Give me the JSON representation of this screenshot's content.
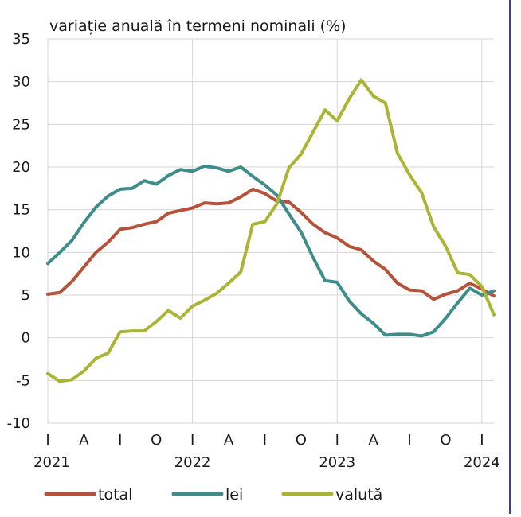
{
  "chart_data": {
    "type": "line",
    "title": "variație anuală în termeni nominali (%)",
    "ylim": [
      -10,
      35
    ],
    "yticks": [
      35,
      30,
      25,
      20,
      15,
      10,
      5,
      0,
      -5,
      -10
    ],
    "xtick_labels": [
      "I",
      "A",
      "I",
      "O",
      "I",
      "A",
      "I",
      "O",
      "I",
      "A",
      "I",
      "O",
      "I"
    ],
    "year_labels": [
      "2021",
      "2022",
      "2023",
      "2024"
    ],
    "grid": true,
    "legend_position": "bottom",
    "series": [
      {
        "name": "total",
        "color": "#b5533a",
        "values": [
          5.1,
          5.3,
          6.6,
          8.3,
          10.0,
          11.2,
          12.7,
          12.9,
          13.3,
          13.6,
          14.6,
          14.9,
          15.2,
          15.8,
          15.7,
          15.8,
          16.5,
          17.4,
          16.9,
          16.0,
          15.9,
          14.7,
          13.3,
          12.3,
          11.7,
          10.7,
          10.3,
          9.0,
          8.0,
          6.4,
          5.6,
          5.5,
          4.5,
          5.1,
          5.5,
          6.4,
          5.7,
          4.9
        ]
      },
      {
        "name": "lei",
        "color": "#3e8d8a",
        "values": [
          8.7,
          10.0,
          11.4,
          13.5,
          15.3,
          16.6,
          17.4,
          17.5,
          18.4,
          18.0,
          19.0,
          19.7,
          19.5,
          20.1,
          19.9,
          19.5,
          20.0,
          18.9,
          17.9,
          16.7,
          14.5,
          12.4,
          9.4,
          6.7,
          6.5,
          4.3,
          2.8,
          1.7,
          0.3,
          0.4,
          0.4,
          0.2,
          0.7,
          2.3,
          4.1,
          5.8,
          5.0,
          5.5
        ]
      },
      {
        "name": "valută",
        "color": "#aab536",
        "values": [
          -4.2,
          -5.1,
          -4.9,
          -3.9,
          -2.4,
          -1.8,
          0.7,
          0.8,
          0.8,
          1.9,
          3.2,
          2.3,
          3.7,
          4.4,
          5.2,
          6.4,
          7.7,
          13.3,
          13.6,
          15.7,
          19.9,
          21.5,
          24.1,
          26.7,
          25.4,
          28.0,
          30.2,
          28.3,
          27.5,
          21.6,
          19.1,
          17.0,
          13.0,
          10.7,
          7.6,
          7.4,
          6.0,
          2.7
        ]
      }
    ]
  }
}
